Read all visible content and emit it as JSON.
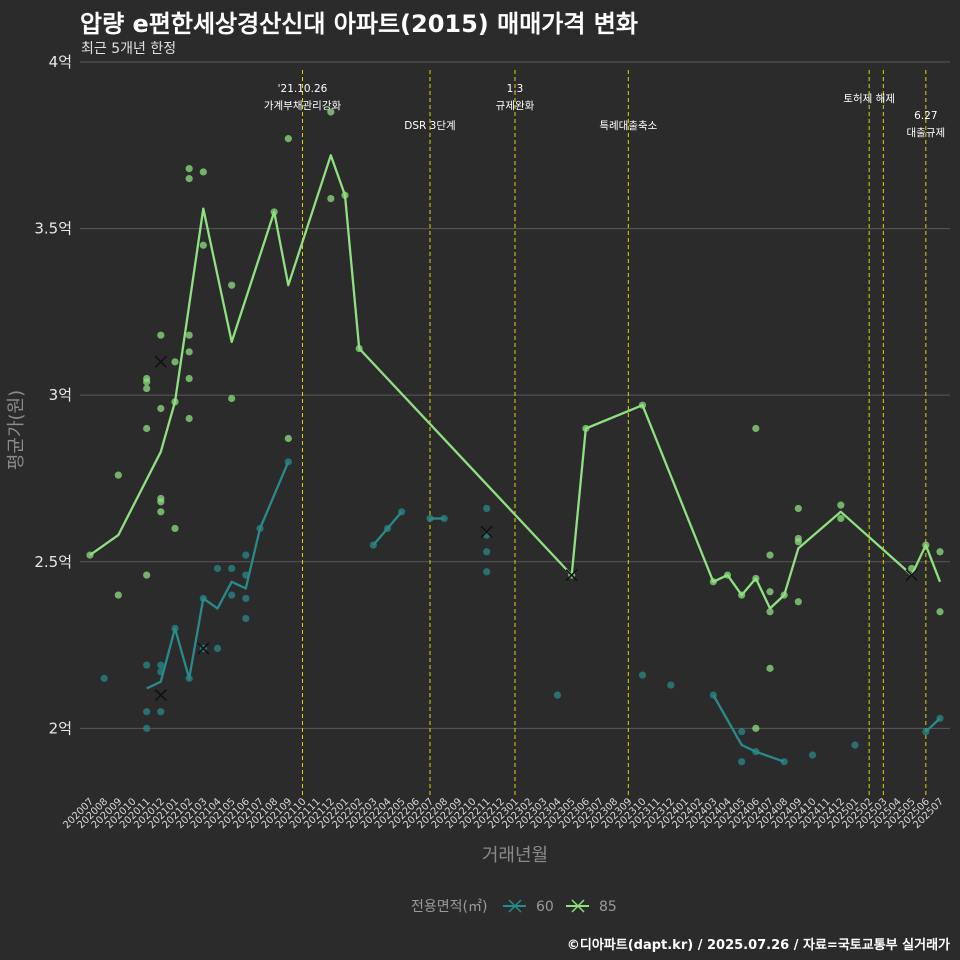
{
  "header": {
    "title": "압량 e편한세상경산신대 아파트(2015) 매매가격 변화",
    "subtitle": "최근 5개년 한정"
  },
  "caption": "©디아파트(dapt.kr) / 2025.07.26 / 자료=국토교통부 실거래가",
  "colors": {
    "background": "#2b2b2b",
    "grid": "#5a5a5a",
    "s60": "#2a8a8a",
    "s85": "#8ee080",
    "vline": "#d8d800",
    "marker": "#111111"
  },
  "chart_data": {
    "type": "line",
    "title": "압량 e편한세상경산신대 아파트(2015) 매매가격 변화",
    "subtitle": "최근 5개년 한정",
    "xlabel": "거래년월",
    "ylabel": "평균가(원)",
    "ylim": [
      1.8,
      4.0
    ],
    "yticks": [
      {
        "v": 2,
        "label": "2억"
      },
      {
        "v": 2.5,
        "label": "2.5억"
      },
      {
        "v": 3,
        "label": "3억"
      },
      {
        "v": 3.5,
        "label": "3.5억"
      },
      {
        "v": 4,
        "label": "4억"
      }
    ],
    "grid": true,
    "legend": {
      "title": "전용면적(㎡)",
      "position": "bottom",
      "entries": [
        "60",
        "85"
      ]
    },
    "x": [
      "202007",
      "202008",
      "202009",
      "202010",
      "202011",
      "202012",
      "202101",
      "202102",
      "202103",
      "202104",
      "202105",
      "202106",
      "202107",
      "202108",
      "202109",
      "202110",
      "202111",
      "202112",
      "202201",
      "202202",
      "202203",
      "202204",
      "202205",
      "202206",
      "202207",
      "202208",
      "202209",
      "202210",
      "202211",
      "202212",
      "202301",
      "202302",
      "202303",
      "202304",
      "202305",
      "202306",
      "202307",
      "202308",
      "202309",
      "202310",
      "202311",
      "202312",
      "202401",
      "202402",
      "202403",
      "202404",
      "202405",
      "202406",
      "202407",
      "202408",
      "202409",
      "202410",
      "202411",
      "202412",
      "202501",
      "202502",
      "202503",
      "202504",
      "202505",
      "202506",
      "202507"
    ],
    "series": [
      {
        "name": "60",
        "segments": [
          [
            [
              "202011",
              2.12
            ],
            [
              "202012",
              2.14
            ],
            [
              "202101",
              2.3
            ],
            [
              "202102",
              2.15
            ],
            [
              "202103",
              2.39
            ],
            [
              "202104",
              2.36
            ],
            [
              "202105",
              2.44
            ],
            [
              "202106",
              2.42
            ],
            [
              "202107",
              2.6
            ],
            [
              "202108",
              2.7
            ],
            [
              "202109",
              2.8
            ]
          ],
          [
            [
              "202203",
              2.55
            ],
            [
              "202204",
              2.6
            ],
            [
              "202205",
              2.65
            ]
          ],
          [
            [
              "202207",
              2.63
            ],
            [
              "202208",
              2.63
            ]
          ],
          [
            [
              "202403",
              2.1
            ],
            [
              "202405",
              1.95
            ],
            [
              "202406",
              1.93
            ],
            [
              "202408",
              1.9
            ]
          ],
          [
            [
              "202506",
              1.99
            ],
            [
              "202507",
              2.03
            ]
          ]
        ],
        "points": [
          [
            "202008",
            2.15
          ],
          [
            "202011",
            2.19
          ],
          [
            "202011",
            2.05
          ],
          [
            "202011",
            2.0
          ],
          [
            "202012",
            2.19
          ],
          [
            "202012",
            2.17
          ],
          [
            "202012",
            2.05
          ],
          [
            "202101",
            2.3
          ],
          [
            "202102",
            2.15
          ],
          [
            "202103",
            2.39
          ],
          [
            "202103",
            2.24
          ],
          [
            "202104",
            2.48
          ],
          [
            "202104",
            2.24
          ],
          [
            "202105",
            2.48
          ],
          [
            "202105",
            2.4
          ],
          [
            "202106",
            2.52
          ],
          [
            "202106",
            2.46
          ],
          [
            "202106",
            2.39
          ],
          [
            "202106",
            2.33
          ],
          [
            "202107",
            2.6
          ],
          [
            "202109",
            2.8
          ],
          [
            "202203",
            2.55
          ],
          [
            "202204",
            2.6
          ],
          [
            "202205",
            2.65
          ],
          [
            "202207",
            2.63
          ],
          [
            "202208",
            2.63
          ],
          [
            "202211",
            2.66
          ],
          [
            "202211",
            2.58
          ],
          [
            "202211",
            2.53
          ],
          [
            "202211",
            2.47
          ],
          [
            "202304",
            2.1
          ],
          [
            "202310",
            2.16
          ],
          [
            "202312",
            2.13
          ],
          [
            "202403",
            2.1
          ],
          [
            "202405",
            1.99
          ],
          [
            "202405",
            1.9
          ],
          [
            "202406",
            1.93
          ],
          [
            "202408",
            1.9
          ],
          [
            "202410",
            1.92
          ],
          [
            "202501",
            1.95
          ],
          [
            "202506",
            1.99
          ],
          [
            "202507",
            2.03
          ]
        ],
        "crosses": [
          [
            "202012",
            2.1
          ],
          [
            "202103",
            2.24
          ],
          [
            "202211",
            2.59
          ]
        ]
      },
      {
        "name": "85",
        "segments": [
          [
            [
              "202007",
              2.52
            ],
            [
              "202009",
              2.58
            ],
            [
              "202012",
              2.83
            ],
            [
              "202101",
              2.98
            ],
            [
              "202103",
              3.56
            ],
            [
              "202105",
              3.16
            ],
            [
              "202108",
              3.55
            ],
            [
              "202109",
              3.33
            ],
            [
              "202112",
              3.72
            ],
            [
              "202201",
              3.6
            ],
            [
              "202202",
              3.14
            ],
            [
              "202305",
              2.46
            ],
            [
              "202306",
              2.9
            ],
            [
              "202310",
              2.97
            ],
            [
              "202403",
              2.44
            ],
            [
              "202404",
              2.46
            ],
            [
              "202405",
              2.4
            ],
            [
              "202406",
              2.45
            ],
            [
              "202407",
              2.36
            ],
            [
              "202408",
              2.4
            ],
            [
              "202409",
              2.54
            ],
            [
              "202412",
              2.65
            ],
            [
              "202505",
              2.46
            ],
            [
              "202506",
              2.55
            ],
            [
              "202507",
              2.44
            ]
          ]
        ],
        "points": [
          [
            "202007",
            2.52
          ],
          [
            "202009",
            2.76
          ],
          [
            "202009",
            2.4
          ],
          [
            "202011",
            3.05
          ],
          [
            "202011",
            3.04
          ],
          [
            "202011",
            3.02
          ],
          [
            "202011",
            2.9
          ],
          [
            "202011",
            2.46
          ],
          [
            "202012",
            3.18
          ],
          [
            "202012",
            2.96
          ],
          [
            "202012",
            2.69
          ],
          [
            "202012",
            2.68
          ],
          [
            "202012",
            2.65
          ],
          [
            "202101",
            3.1
          ],
          [
            "202101",
            2.98
          ],
          [
            "202101",
            2.6
          ],
          [
            "202102",
            3.68
          ],
          [
            "202102",
            3.65
          ],
          [
            "202102",
            3.18
          ],
          [
            "202102",
            3.13
          ],
          [
            "202102",
            3.05
          ],
          [
            "202102",
            2.93
          ],
          [
            "202103",
            3.67
          ],
          [
            "202103",
            3.45
          ],
          [
            "202105",
            3.33
          ],
          [
            "202105",
            2.99
          ],
          [
            "202108",
            3.55
          ],
          [
            "202109",
            3.77
          ],
          [
            "202109",
            2.87
          ],
          [
            "202112",
            3.85
          ],
          [
            "202112",
            3.59
          ],
          [
            "202201",
            3.6
          ],
          [
            "202202",
            3.14
          ],
          [
            "202305",
            2.46
          ],
          [
            "202306",
            2.9
          ],
          [
            "202310",
            2.97
          ],
          [
            "202403",
            2.44
          ],
          [
            "202404",
            2.46
          ],
          [
            "202405",
            2.4
          ],
          [
            "202406",
            2.9
          ],
          [
            "202406",
            2.45
          ],
          [
            "202406",
            2.0
          ],
          [
            "202407",
            2.52
          ],
          [
            "202407",
            2.41
          ],
          [
            "202407",
            2.35
          ],
          [
            "202407",
            2.18
          ],
          [
            "202408",
            2.4
          ],
          [
            "202409",
            2.66
          ],
          [
            "202409",
            2.57
          ],
          [
            "202409",
            2.56
          ],
          [
            "202409",
            2.38
          ],
          [
            "202412",
            2.67
          ],
          [
            "202412",
            2.63
          ],
          [
            "202505",
            2.48
          ],
          [
            "202506",
            2.55
          ],
          [
            "202507",
            2.53
          ],
          [
            "202507",
            2.35
          ]
        ],
        "crosses": [
          [
            "202012",
            3.1
          ],
          [
            "202305",
            2.46
          ],
          [
            "202505",
            2.46
          ]
        ]
      }
    ],
    "events": [
      {
        "x": "202110",
        "lines": [
          "'21.10.26",
          "가계부채관리강화"
        ],
        "row": 0
      },
      {
        "x": "202207",
        "lines": [
          "DSR 3단계"
        ],
        "row": 2
      },
      {
        "x": "202301",
        "lines": [
          "1.3",
          "규제완화"
        ],
        "row": 0
      },
      {
        "x": "202309",
        "lines": [
          "특례대출축소"
        ],
        "row": 2
      },
      {
        "x": "202502",
        "lines": [
          "토허제 해제"
        ],
        "row": 1
      },
      {
        "x": "202503",
        "lines": [],
        "row": 1
      },
      {
        "x": "202506",
        "lines": [
          "6.27",
          "대출규제"
        ],
        "row": 3
      }
    ]
  }
}
